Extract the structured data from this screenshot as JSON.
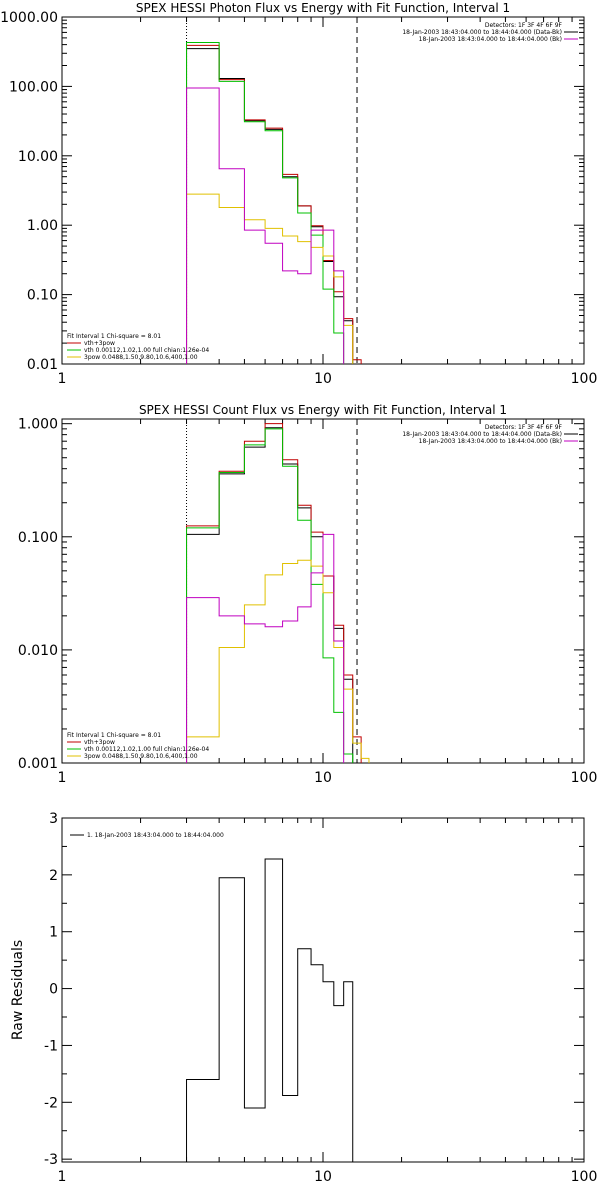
{
  "chart_data": [
    {
      "type": "line",
      "title": "SPEX HESSI Photon Flux vs Energy with Fit Function, Interval 1",
      "ylabel": "",
      "xscale": "log",
      "yscale": "log",
      "xlim": [
        1,
        100
      ],
      "ylim": [
        0.01,
        1000
      ],
      "xticks": [
        {
          "v": 1,
          "label": "1"
        },
        {
          "v": 10,
          "label": "10"
        },
        {
          "v": 100,
          "label": "100"
        }
      ],
      "yticks": [
        {
          "v": 1000,
          "label": "1000.00"
        },
        {
          "v": 100,
          "label": "100.00"
        },
        {
          "v": 10,
          "label": "10.00"
        },
        {
          "v": 1,
          "label": "1.00"
        },
        {
          "v": 0.1,
          "label": "0.10"
        },
        {
          "v": 0.01,
          "label": "0.01"
        }
      ],
      "vlines": [
        {
          "x": 3.0,
          "style": "dotted"
        },
        {
          "x": 13.5,
          "style": "dashed"
        }
      ],
      "legend_right": {
        "lines": [
          "Detectors: 1F 3F 4F 6F 9F",
          "18-Jan-2003 18:43:04.000 to 18:44:04.000 (Data-Bk)",
          "18-Jan-2003 18:43:04.000 to 18:44:04.000 (Bk)"
        ],
        "colors": [
          "",
          "#000000",
          "#c000c0"
        ]
      },
      "legend_left": {
        "lines": [
          "Fit Interval 1   Chi-square = 8.01",
          "vth+3pow",
          "vth 0.00112,1.02,1.00  full chian:1.26e-04",
          "3pow 0.0488,1.50,9.80,10.6,400,1.00"
        ],
        "colors": [
          "",
          "#c00000",
          "#00c000",
          "#e0c000"
        ]
      },
      "edges": [
        3.0,
        4.0,
        5.0,
        6.0,
        7.0,
        8.0,
        9.0,
        10.0,
        11.0,
        12.0,
        13.0,
        14.0,
        15.0
      ],
      "series": [
        {
          "name": "Data-Bk",
          "color": "#000000",
          "values": [
            350,
            130,
            32,
            24,
            5.0,
            1.9,
            0.95,
            0.3,
            0.093,
            0.042,
            0.009,
            null
          ]
        },
        {
          "name": "vth+3pow",
          "color": "#c00000",
          "values": [
            390,
            125,
            33,
            25,
            5.4,
            1.9,
            0.98,
            0.31,
            0.11,
            0.045,
            0.0115,
            null
          ]
        },
        {
          "name": "vth",
          "color": "#00c000",
          "values": [
            430,
            118,
            31,
            23,
            4.8,
            1.5,
            0.72,
            0.12,
            0.028,
            0.0085,
            null,
            null
          ]
        },
        {
          "name": "3pow",
          "color": "#e0c000",
          "values": [
            2.8,
            1.8,
            1.2,
            0.9,
            0.7,
            0.58,
            0.48,
            0.36,
            0.18,
            0.036,
            0.0095,
            null
          ]
        },
        {
          "name": "Bk",
          "color": "#c000c0",
          "values": [
            95,
            6.5,
            0.85,
            0.55,
            0.22,
            0.2,
            0.85,
            0.85,
            0.22,
            null,
            null,
            null
          ]
        }
      ]
    },
    {
      "type": "line",
      "title": "SPEX HESSI Count Flux vs Energy with Fit Function, Interval 1",
      "ylabel": "",
      "xscale": "log",
      "yscale": "log",
      "xlim": [
        1,
        100
      ],
      "ylim": [
        0.001,
        1.1
      ],
      "xticks": [
        {
          "v": 1,
          "label": "1"
        },
        {
          "v": 10,
          "label": "10"
        },
        {
          "v": 100,
          "label": "100"
        }
      ],
      "yticks": [
        {
          "v": 1,
          "label": "1.000"
        },
        {
          "v": 0.1,
          "label": "0.100"
        },
        {
          "v": 0.01,
          "label": "0.010"
        },
        {
          "v": 0.001,
          "label": "0.001"
        }
      ],
      "vlines": [
        {
          "x": 3.0,
          "style": "dotted"
        },
        {
          "x": 13.5,
          "style": "dashed"
        }
      ],
      "legend_right": {
        "lines": [
          "Detectors: 1F 3F 4F 6F 9F",
          "18-Jan-2003 18:43:04.000 to 18:44:04.000 (Data-Bk)",
          "18-Jan-2003 18:43:04.000 to 18:44:04.000 (Bk)"
        ],
        "colors": [
          "",
          "#000000",
          "#c000c0"
        ]
      },
      "legend_left": {
        "lines": [
          "Fit Interval 1   Chi-square = 8.01",
          "vth+3pow",
          "vth 0.00112,1.02,1.00  full chian:1.26e-04",
          "3pow 0.0488,1.50,9.80,10.6,400,1.00"
        ],
        "colors": [
          "",
          "#c00000",
          "#00c000",
          "#e0c000"
        ]
      },
      "edges": [
        3.0,
        4.0,
        5.0,
        6.0,
        7.0,
        8.0,
        9.0,
        10.0,
        11.0,
        12.0,
        13.0,
        14.0,
        15.0
      ],
      "series": [
        {
          "name": "Data-Bk",
          "color": "#000000",
          "values": [
            0.105,
            0.36,
            0.62,
            0.92,
            0.44,
            0.18,
            0.1,
            0.045,
            0.0155,
            0.0055,
            null,
            null
          ]
        },
        {
          "name": "vth+3pow",
          "color": "#c00000",
          "values": [
            0.125,
            0.38,
            0.7,
            1.0,
            0.48,
            0.19,
            0.11,
            0.045,
            0.0165,
            0.006,
            0.0017,
            null
          ]
        },
        {
          "name": "vth",
          "color": "#00c000",
          "values": [
            0.12,
            0.37,
            0.65,
            0.9,
            0.42,
            0.14,
            0.038,
            0.0085,
            0.0028,
            0.0012,
            null,
            null
          ]
        },
        {
          "name": "3pow",
          "color": "#e0c000",
          "values": [
            0.0017,
            0.0105,
            0.025,
            0.046,
            0.058,
            0.062,
            0.055,
            0.032,
            0.0105,
            0.0045,
            0.0015,
            0.0011
          ]
        },
        {
          "name": "Bk",
          "color": "#c000c0",
          "values": [
            0.029,
            0.02,
            0.017,
            0.016,
            0.018,
            0.024,
            0.048,
            0.105,
            0.012,
            null,
            null,
            null
          ]
        }
      ]
    },
    {
      "type": "line",
      "title": "",
      "ylabel": "Raw Residuals",
      "xscale": "log",
      "yscale": "linear",
      "xlim": [
        1,
        100
      ],
      "ylim": [
        -3.05,
        3
      ],
      "xticks": [
        {
          "v": 1,
          "label": "1"
        },
        {
          "v": 10,
          "label": "10"
        },
        {
          "v": 100,
          "label": "100"
        }
      ],
      "yticks": [
        {
          "v": 3,
          "label": "3"
        },
        {
          "v": 2,
          "label": "2"
        },
        {
          "v": 1,
          "label": "1"
        },
        {
          "v": 0,
          "label": "0"
        },
        {
          "v": -1,
          "label": "-1"
        },
        {
          "v": -2,
          "label": "-2"
        },
        {
          "v": -3,
          "label": "-3"
        }
      ],
      "vlines": [],
      "legend_right": {
        "lines": [],
        "colors": []
      },
      "legend_left_top": {
        "lines": [
          "1. 18-Jan-2003 18:43:04.000 to 18:44:04.000"
        ],
        "colors": [
          "#000000"
        ]
      },
      "edges": [
        3.0,
        4.0,
        5.0,
        6.0,
        7.0,
        8.0,
        9.0,
        10.0,
        11.0,
        12.0,
        13.0
      ],
      "series": [
        {
          "name": "1. 18-Jan-2003 18:43:04.000 to 18:44:04.000",
          "color": "#000000",
          "values": [
            -1.6,
            1.95,
            -2.1,
            2.28,
            -1.88,
            0.7,
            0.42,
            0.12,
            -0.3,
            0.12
          ]
        }
      ]
    }
  ]
}
